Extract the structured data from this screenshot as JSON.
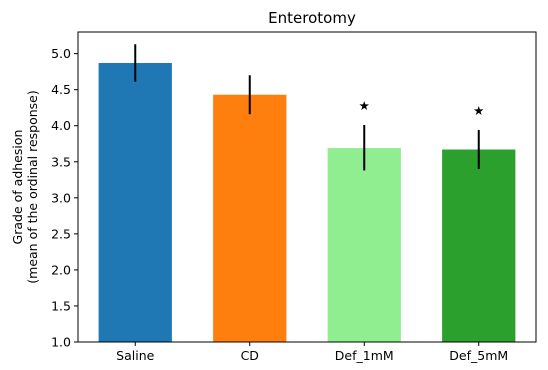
{
  "chart_data": {
    "type": "bar",
    "title": "Enterotomy",
    "xlabel": "",
    "ylabel_lines": [
      "Grade of adhesion",
      "(mean of the ordinal response)"
    ],
    "categories": [
      "Saline",
      "CD",
      "Def_1mM",
      "Def_5mM"
    ],
    "values": [
      4.87,
      4.43,
      3.69,
      3.67
    ],
    "error_low": [
      4.61,
      4.16,
      3.38,
      3.4
    ],
    "error_high": [
      5.13,
      4.7,
      4.01,
      3.94
    ],
    "significance_markers": [
      "",
      "",
      "★",
      "★"
    ],
    "bar_colors": [
      "#1f77b4",
      "#ff7f0e",
      "#90ee90",
      "#2ca02c"
    ],
    "ylim": [
      1.0,
      5.3
    ],
    "yticks": [
      "1.0",
      "1.5",
      "2.0",
      "2.5",
      "3.0",
      "3.5",
      "4.0",
      "4.5",
      "5.0"
    ],
    "grid": false,
    "legend": "none"
  }
}
